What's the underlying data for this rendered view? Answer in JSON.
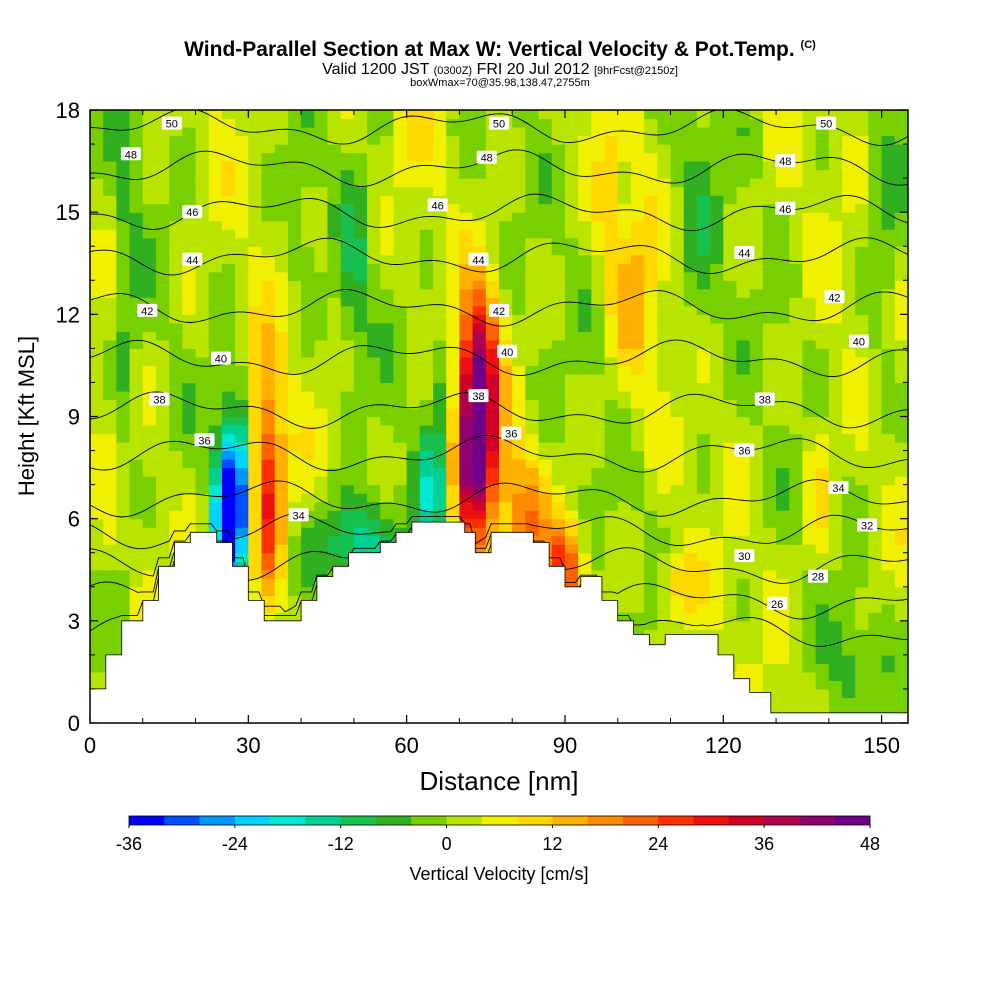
{
  "header": {
    "title_main": "Wind-Parallel Section at Max W: Vertical Velocity & Pot.Temp.",
    "title_mark": "(C)",
    "subtitle_valid": "Valid 1200 JST",
    "subtitle_utc": "(0300Z)",
    "subtitle_date": "FRI 20 Jul 2012",
    "subtitle_fcst": "[9hrFcst@2150z]",
    "subtitle_box": "boxWmax=70@35.98,138.47,2755m"
  },
  "chart_data": {
    "type": "heatmap",
    "xlabel": "Distance [nm]",
    "ylabel": "Height [Kft MSL]",
    "xlim": [
      0,
      155
    ],
    "ylim": [
      0,
      18
    ],
    "xticks": [
      0,
      30,
      60,
      90,
      120,
      150
    ],
    "yticks": [
      0,
      3,
      6,
      9,
      12,
      15,
      18
    ],
    "colorbar": {
      "label": "Vertical Velocity [cm/s]",
      "ticks": [
        -36,
        -24,
        -12,
        0,
        12,
        24,
        36,
        48
      ],
      "range": [
        -36,
        48
      ],
      "colors": [
        "#0000ff",
        "#0050ff",
        "#0096ff",
        "#00d2ff",
        "#00e8d0",
        "#00d090",
        "#18c050",
        "#30b020",
        "#78d000",
        "#b8e400",
        "#f0f000",
        "#ffd800",
        "#ffb000",
        "#ff8c00",
        "#ff6000",
        "#ff3000",
        "#ee1010",
        "#d00028",
        "#b00050",
        "#900070",
        "#700088"
      ]
    },
    "terrain_profile": [
      [
        0,
        1.0
      ],
      [
        3,
        1.0
      ],
      [
        3,
        2.0
      ],
      [
        6,
        2.0
      ],
      [
        6,
        3.0
      ],
      [
        10,
        3.0
      ],
      [
        10,
        3.6
      ],
      [
        13,
        3.6
      ],
      [
        13,
        4.6
      ],
      [
        16,
        4.6
      ],
      [
        16,
        5.3
      ],
      [
        19,
        5.3
      ],
      [
        19,
        5.6
      ],
      [
        24,
        5.6
      ],
      [
        24,
        5.3
      ],
      [
        27,
        5.3
      ],
      [
        27,
        4.6
      ],
      [
        30,
        4.6
      ],
      [
        30,
        3.6
      ],
      [
        33,
        3.6
      ],
      [
        33,
        3.0
      ],
      [
        40,
        3.0
      ],
      [
        40,
        3.6
      ],
      [
        43,
        3.6
      ],
      [
        43,
        4.3
      ],
      [
        46,
        4.3
      ],
      [
        46,
        4.6
      ],
      [
        49,
        4.6
      ],
      [
        49,
        5.0
      ],
      [
        55,
        5.0
      ],
      [
        55,
        5.3
      ],
      [
        58,
        5.3
      ],
      [
        58,
        5.6
      ],
      [
        61,
        5.6
      ],
      [
        61,
        5.9
      ],
      [
        71,
        5.9
      ],
      [
        71,
        5.6
      ],
      [
        73,
        5.6
      ],
      [
        73,
        5.0
      ],
      [
        76,
        5.0
      ],
      [
        76,
        5.6
      ],
      [
        84,
        5.6
      ],
      [
        84,
        5.3
      ],
      [
        87,
        5.3
      ],
      [
        87,
        4.6
      ],
      [
        90,
        4.6
      ],
      [
        90,
        4.0
      ],
      [
        93,
        4.0
      ],
      [
        93,
        4.3
      ],
      [
        97,
        4.3
      ],
      [
        97,
        3.6
      ],
      [
        100,
        3.6
      ],
      [
        100,
        3.0
      ],
      [
        103,
        3.0
      ],
      [
        103,
        2.6
      ],
      [
        106,
        2.6
      ],
      [
        106,
        2.3
      ],
      [
        109,
        2.3
      ],
      [
        109,
        2.6
      ],
      [
        119,
        2.6
      ],
      [
        119,
        2.0
      ],
      [
        122,
        2.0
      ],
      [
        122,
        1.3
      ],
      [
        125,
        1.3
      ],
      [
        125,
        0.9
      ],
      [
        129,
        0.9
      ],
      [
        129,
        0.3
      ],
      [
        155,
        0.3
      ]
    ],
    "vertical_velocity_features": [
      {
        "x": 28,
        "z": 7.0,
        "sx": 2.5,
        "sy": 1.8,
        "w": -32
      },
      {
        "x": 26,
        "z": 6.0,
        "sx": 1.5,
        "sy": 1.0,
        "w": -36
      },
      {
        "x": 33,
        "z": 7.0,
        "sx": 2.5,
        "sy": 2.4,
        "w": 30
      },
      {
        "x": 50,
        "z": 5.2,
        "sx": 5.5,
        "sy": 1.0,
        "w": -18
      },
      {
        "x": 65,
        "z": 6.8,
        "sx": 2.0,
        "sy": 1.2,
        "w": -14
      },
      {
        "x": 73,
        "z": 8.2,
        "sx": 2.8,
        "sy": 2.0,
        "w": 48
      },
      {
        "x": 74,
        "z": 11.0,
        "sx": 2.5,
        "sy": 1.6,
        "w": 20
      },
      {
        "x": 67,
        "z": 9.6,
        "sx": 2.0,
        "sy": 1.5,
        "w": -10
      },
      {
        "x": 82,
        "z": 6.0,
        "sx": 3.0,
        "sy": 1.4,
        "w": 16
      },
      {
        "x": 90,
        "z": 4.6,
        "sx": 2.5,
        "sy": 1.0,
        "w": 24
      },
      {
        "x": 103,
        "z": 12.5,
        "sx": 3.0,
        "sy": 2.2,
        "w": 10
      },
      {
        "x": 98,
        "z": 15.5,
        "sx": 1.5,
        "sy": 1.5,
        "w": 8
      },
      {
        "x": 111,
        "z": 4.0,
        "sx": 3.0,
        "sy": 0.8,
        "w": 10
      },
      {
        "x": 138,
        "z": 8.0,
        "sx": 2.0,
        "sy": 1.0,
        "w": 6
      },
      {
        "x": 138,
        "z": 6.0,
        "sx": 2.5,
        "sy": 1.0,
        "w": 5
      },
      {
        "x": 7,
        "z": 12.0,
        "sx": 1.5,
        "sy": 6.0,
        "w": -6
      },
      {
        "x": 50,
        "z": 13.0,
        "sx": 2.0,
        "sy": 2.0,
        "w": -8
      },
      {
        "x": 115,
        "z": 14.0,
        "sx": 3.0,
        "sy": 3.0,
        "w": -6
      },
      {
        "x": 150,
        "z": 13.0,
        "sx": 2.0,
        "sy": 3.0,
        "w": -6
      },
      {
        "x": 145,
        "z": 1.8,
        "sx": 4.0,
        "sy": 1.0,
        "w": -6
      },
      {
        "x": 60,
        "z": 17.3,
        "sx": 2.0,
        "sy": 0.8,
        "w": 6
      },
      {
        "x": 20,
        "z": 11.5,
        "sx": 1.0,
        "sy": 1.0,
        "w": 4
      },
      {
        "x": 40,
        "z": 15.0,
        "sx": 2.0,
        "sy": 1.5,
        "w": -5
      }
    ],
    "potential_temperature_contours": [
      {
        "value": 26,
        "z": 2.7
      },
      {
        "value": 28,
        "z": 3.6
      },
      {
        "value": 30,
        "z": 4.6
      },
      {
        "value": 32,
        "z": 5.6
      },
      {
        "value": 34,
        "z": 6.6
      },
      {
        "value": 36,
        "z": 7.9
      },
      {
        "value": 38,
        "z": 9.2
      },
      {
        "value": 40,
        "z": 10.7
      },
      {
        "value": 42,
        "z": 12.2
      },
      {
        "value": 44,
        "z": 13.7
      },
      {
        "value": 46,
        "z": 15.0
      },
      {
        "value": 48,
        "z": 16.3
      },
      {
        "value": 50,
        "z": 17.5
      }
    ],
    "contour_labels": [
      {
        "text": "50",
        "x": 20,
        "z": 17.6
      },
      {
        "text": "50",
        "x": 100,
        "z": 17.6
      },
      {
        "text": "50",
        "x": 180,
        "z": 17.6
      },
      {
        "text": "48",
        "x": 10,
        "z": 16.7
      },
      {
        "text": "48",
        "x": 97,
        "z": 16.6
      },
      {
        "text": "48",
        "x": 170,
        "z": 16.5
      },
      {
        "text": "46",
        "x": 25,
        "z": 15.0
      },
      {
        "text": "46",
        "x": 85,
        "z": 15.2
      },
      {
        "text": "46",
        "x": 170,
        "z": 15.1
      },
      {
        "text": "44",
        "x": 25,
        "z": 13.6
      },
      {
        "text": "44",
        "x": 95,
        "z": 13.6
      },
      {
        "text": "44",
        "x": 160,
        "z": 13.8
      },
      {
        "text": "42",
        "x": 14,
        "z": 12.1
      },
      {
        "text": "42",
        "x": 100,
        "z": 12.1
      },
      {
        "text": "42",
        "x": 182,
        "z": 12.5
      },
      {
        "text": "40",
        "x": 32,
        "z": 10.7
      },
      {
        "text": "40",
        "x": 102,
        "z": 10.9
      },
      {
        "text": "40",
        "x": 188,
        "z": 11.2
      },
      {
        "text": "38",
        "x": 17,
        "z": 9.5
      },
      {
        "text": "38",
        "x": 95,
        "z": 9.6
      },
      {
        "text": "38",
        "x": 165,
        "z": 9.5
      },
      {
        "text": "36",
        "x": 28,
        "z": 8.3
      },
      {
        "text": "36",
        "x": 103,
        "z": 8.5
      },
      {
        "text": "36",
        "x": 160,
        "z": 8.0
      },
      {
        "text": "34",
        "x": 51,
        "z": 6.1
      },
      {
        "text": "34",
        "x": 183,
        "z": 6.9
      },
      {
        "text": "32",
        "x": 190,
        "z": 5.8
      },
      {
        "text": "30",
        "x": 160,
        "z": 4.9
      },
      {
        "text": "28",
        "x": 178,
        "z": 4.3
      },
      {
        "text": "26",
        "x": 168,
        "z": 3.5
      }
    ]
  }
}
